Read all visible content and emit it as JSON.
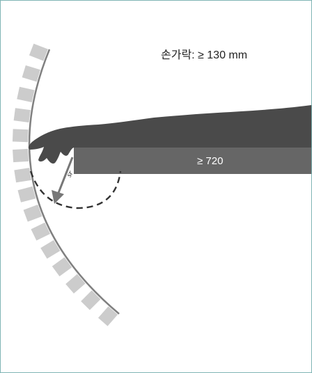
{
  "labels": {
    "finger_reach": "손가락: ≥ 130 mm",
    "arm_length": "≥ 720",
    "radius_symbol": "sr"
  },
  "colors": {
    "frame_border": "#7fb4b4",
    "guard_segments": "#cccccc",
    "guard_line": "#808080",
    "arm": "#4a4a4a",
    "table": "#666666",
    "dashed_arc": "#333333",
    "arrow": "#777777"
  }
}
